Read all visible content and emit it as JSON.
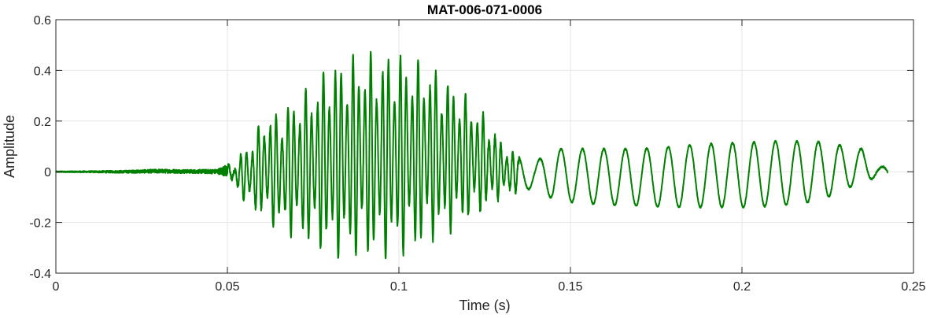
{
  "chart_data": {
    "type": "line",
    "title": "MAT-006-071-0006",
    "xlabel": "Time (s)",
    "ylabel": "Amplitude",
    "xlim": [
      0,
      0.25
    ],
    "ylim": [
      -0.4,
      0.6
    ],
    "xticks": [
      0,
      0.05,
      0.1,
      0.15,
      0.2,
      0.25
    ],
    "xtick_labels": [
      "0",
      "0.05",
      "0.1",
      "0.15",
      "0.2",
      "0.25"
    ],
    "yticks": [
      -0.4,
      -0.2,
      0,
      0.2,
      0.4,
      0.6
    ],
    "ytick_labels": [
      "-0.4",
      "-0.2",
      "0",
      "0.2",
      "0.4",
      "0.6"
    ],
    "grid": true,
    "series": [
      {
        "color": "#008000",
        "x": [
          0,
          0.01,
          0.02,
          0.03,
          0.04,
          0.047,
          0.05,
          0.052,
          0.055,
          0.058,
          0.06,
          0.065,
          0.07,
          0.075,
          0.08,
          0.085,
          0.09,
          0.095,
          0.1,
          0.105,
          0.11,
          0.115,
          0.12,
          0.125,
          0.13,
          0.135,
          0.14,
          0.145,
          0.15,
          0.16,
          0.17,
          0.18,
          0.19,
          0.2,
          0.21,
          0.22,
          0.225,
          0.23,
          0.235,
          0.24,
          0.2425
        ],
        "upper": [
          0.002,
          0.003,
          0.005,
          0.01,
          0.008,
          0.01,
          0.03,
          0.02,
          0.1,
          0.14,
          0.22,
          0.24,
          0.3,
          0.35,
          0.44,
          0.46,
          0.47,
          0.47,
          0.48,
          0.45,
          0.42,
          0.36,
          0.3,
          0.23,
          0.12,
          0.06,
          0.04,
          0.09,
          0.09,
          0.09,
          0.09,
          0.1,
          0.11,
          0.115,
          0.12,
          0.12,
          0.115,
          0.1,
          0.09,
          0.02,
          0.02
        ],
        "lower": [
          -0.002,
          -0.003,
          -0.005,
          -0.005,
          -0.006,
          -0.008,
          -0.02,
          -0.05,
          -0.12,
          -0.16,
          -0.18,
          -0.24,
          -0.26,
          -0.3,
          -0.34,
          -0.35,
          -0.35,
          -0.35,
          -0.34,
          -0.32,
          -0.28,
          -0.24,
          -0.2,
          -0.16,
          -0.1,
          -0.08,
          -0.06,
          -0.11,
          -0.12,
          -0.13,
          -0.135,
          -0.14,
          -0.14,
          -0.14,
          -0.135,
          -0.12,
          -0.1,
          -0.07,
          -0.04,
          -0.02,
          -0.03
        ]
      }
    ]
  }
}
